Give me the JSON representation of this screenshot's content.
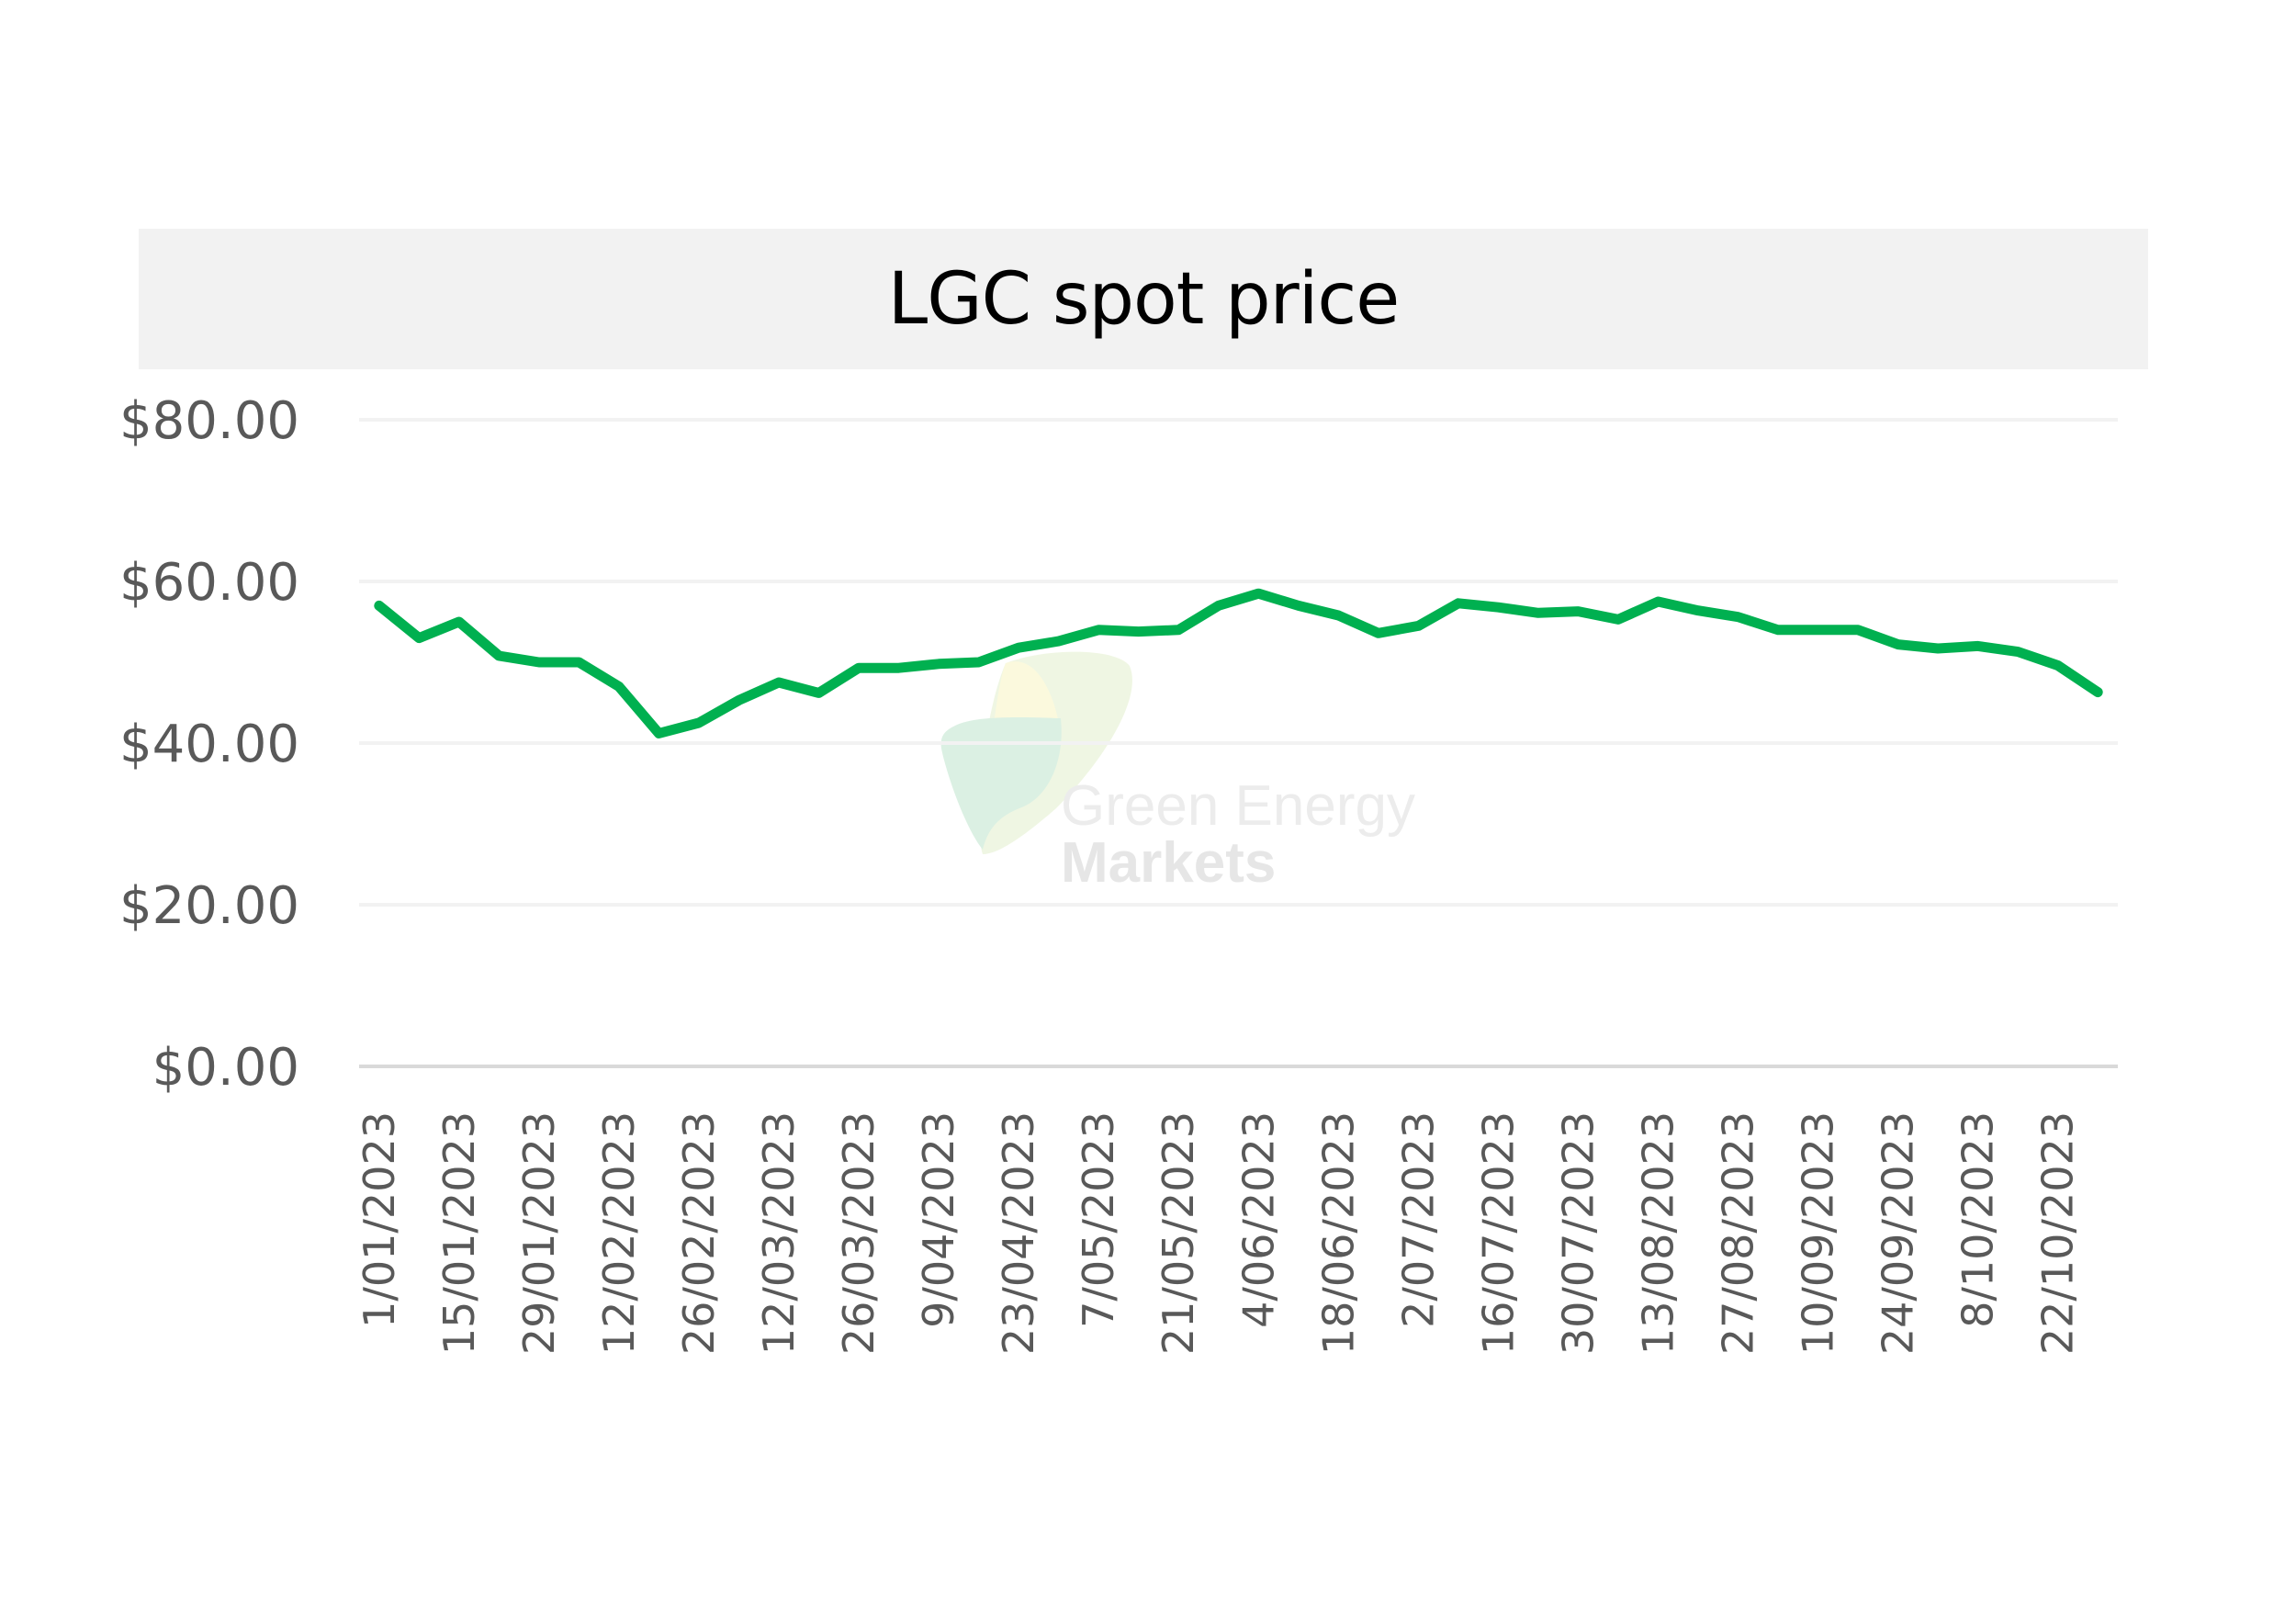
{
  "chart_data": {
    "type": "line",
    "title": "LGC spot price",
    "xlabel": "",
    "ylabel": "",
    "ylim": [
      0,
      80
    ],
    "yticks": [
      0,
      20,
      40,
      60,
      80
    ],
    "ytick_labels": [
      "$0.00",
      "$20.00",
      "$40.00",
      "$60.00",
      "$80.00"
    ],
    "grid": true,
    "legend": "none",
    "x": [
      "1/01/2023",
      "8/01/2023",
      "15/01/2023",
      "22/01/2023",
      "29/01/2023",
      "5/02/2023",
      "12/02/2023",
      "19/02/2023",
      "26/02/2023",
      "5/03/2023",
      "12/03/2023",
      "19/03/2023",
      "26/03/2023",
      "2/04/2023",
      "9/04/2023",
      "16/04/2023",
      "23/04/2023",
      "30/04/2023",
      "7/05/2023",
      "14/05/2023",
      "21/05/2023",
      "28/05/2023",
      "4/06/2023",
      "11/06/2023",
      "18/06/2023",
      "25/06/2023",
      "2/07/2023",
      "9/07/2023",
      "16/07/2023",
      "23/07/2023",
      "30/07/2023",
      "6/08/2023",
      "13/08/2023",
      "20/08/2023",
      "27/08/2023",
      "3/09/2023",
      "10/09/2023",
      "17/09/2023",
      "24/09/2023",
      "1/10/2023",
      "8/10/2023",
      "15/10/2023",
      "22/10/2023",
      "29/10/2023"
    ],
    "xtick_labels": [
      "1/01/2023",
      "15/01/2023",
      "29/01/2023",
      "12/02/2023",
      "26/02/2023",
      "12/03/2023",
      "26/03/2023",
      "9/04/2023",
      "23/04/2023",
      "7/05/2023",
      "21/05/2023",
      "4/06/2023",
      "18/06/2023",
      "2/07/2023",
      "16/07/2023",
      "30/07/2023",
      "13/08/2023",
      "27/08/2023",
      "10/09/2023",
      "24/09/2023",
      "8/10/2023",
      "22/10/2023"
    ],
    "series": [
      {
        "name": "LGC spot price",
        "color": "#00b050",
        "values": [
          57.0,
          53.0,
          55.0,
          50.8,
          50.0,
          50.0,
          47.0,
          41.2,
          42.5,
          45.3,
          47.5,
          46.2,
          49.3,
          49.3,
          49.8,
          50.0,
          51.8,
          52.6,
          54.0,
          53.8,
          54.0,
          57.0,
          58.5,
          57.0,
          55.8,
          53.6,
          54.5,
          57.3,
          56.8,
          56.1,
          56.3,
          55.3,
          57.5,
          56.4,
          55.6,
          54.0,
          54.0,
          54.0,
          52.2,
          51.7,
          52.0,
          51.3,
          49.6,
          46.3
        ]
      }
    ]
  },
  "watermark": {
    "line1": "Green Energy",
    "line2": "Markets"
  },
  "colors": {
    "line": "#00b050",
    "grid": "#f2f2f2",
    "axis": "#d9d9d9",
    "title_bg": "#f2f2f2",
    "tick_text": "#595959"
  }
}
